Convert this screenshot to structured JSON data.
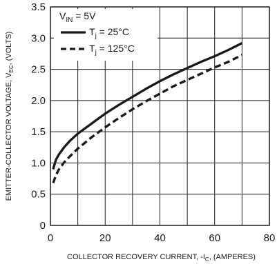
{
  "chart_data": {
    "type": "line",
    "title": "",
    "xlabel": "COLLECTOR RECOVERY CURRENT, -I",
    "xlabel_sub": "C",
    "xlabel_tail": ", (AMPERES)",
    "ylabel": "EMITTER-COLLECTOR VOLTAGE, V",
    "ylabel_sub": "EC",
    "ylabel_tail": ", (VOLTS)",
    "xlim": [
      0,
      80
    ],
    "ylim": [
      0,
      3.5
    ],
    "x_ticks": [
      0,
      20,
      40,
      60,
      80
    ],
    "y_ticks": [
      0,
      0.5,
      1.0,
      1.5,
      2.0,
      2.5,
      3.0,
      3.5
    ],
    "x_tick_labels": [
      "0",
      "20",
      "40",
      "60",
      "80"
    ],
    "y_tick_labels": [
      "0",
      "0.5",
      "1.0",
      "1.5",
      "2.0",
      "2.5",
      "3.0",
      "3.5"
    ],
    "x_minor_step": 10,
    "grid": true,
    "legend_placement": "top-left",
    "condition": {
      "prefix": "V",
      "sub": "IN",
      "suffix": " = 5V"
    },
    "series": [
      {
        "name_prefix": "T",
        "name_sub": "j",
        "name_suffix": " = 25°C",
        "style": "solid",
        "x": [
          1,
          2,
          3,
          5,
          7,
          10,
          15,
          20,
          25,
          30,
          35,
          40,
          45,
          50,
          55,
          60,
          65,
          70
        ],
        "y": [
          0.9,
          1.05,
          1.13,
          1.25,
          1.35,
          1.47,
          1.63,
          1.79,
          1.93,
          2.06,
          2.19,
          2.31,
          2.42,
          2.52,
          2.62,
          2.71,
          2.81,
          2.92
        ]
      },
      {
        "name_prefix": "T",
        "name_sub": "j",
        "name_suffix": " = 125°C",
        "style": "dashed",
        "x": [
          1,
          2,
          3,
          5,
          7,
          10,
          15,
          20,
          25,
          30,
          35,
          40,
          45,
          50,
          55,
          60,
          65,
          70
        ],
        "y": [
          0.68,
          0.8,
          0.89,
          1.01,
          1.1,
          1.23,
          1.41,
          1.57,
          1.72,
          1.86,
          1.99,
          2.11,
          2.23,
          2.33,
          2.43,
          2.53,
          2.62,
          2.73
        ]
      }
    ]
  }
}
